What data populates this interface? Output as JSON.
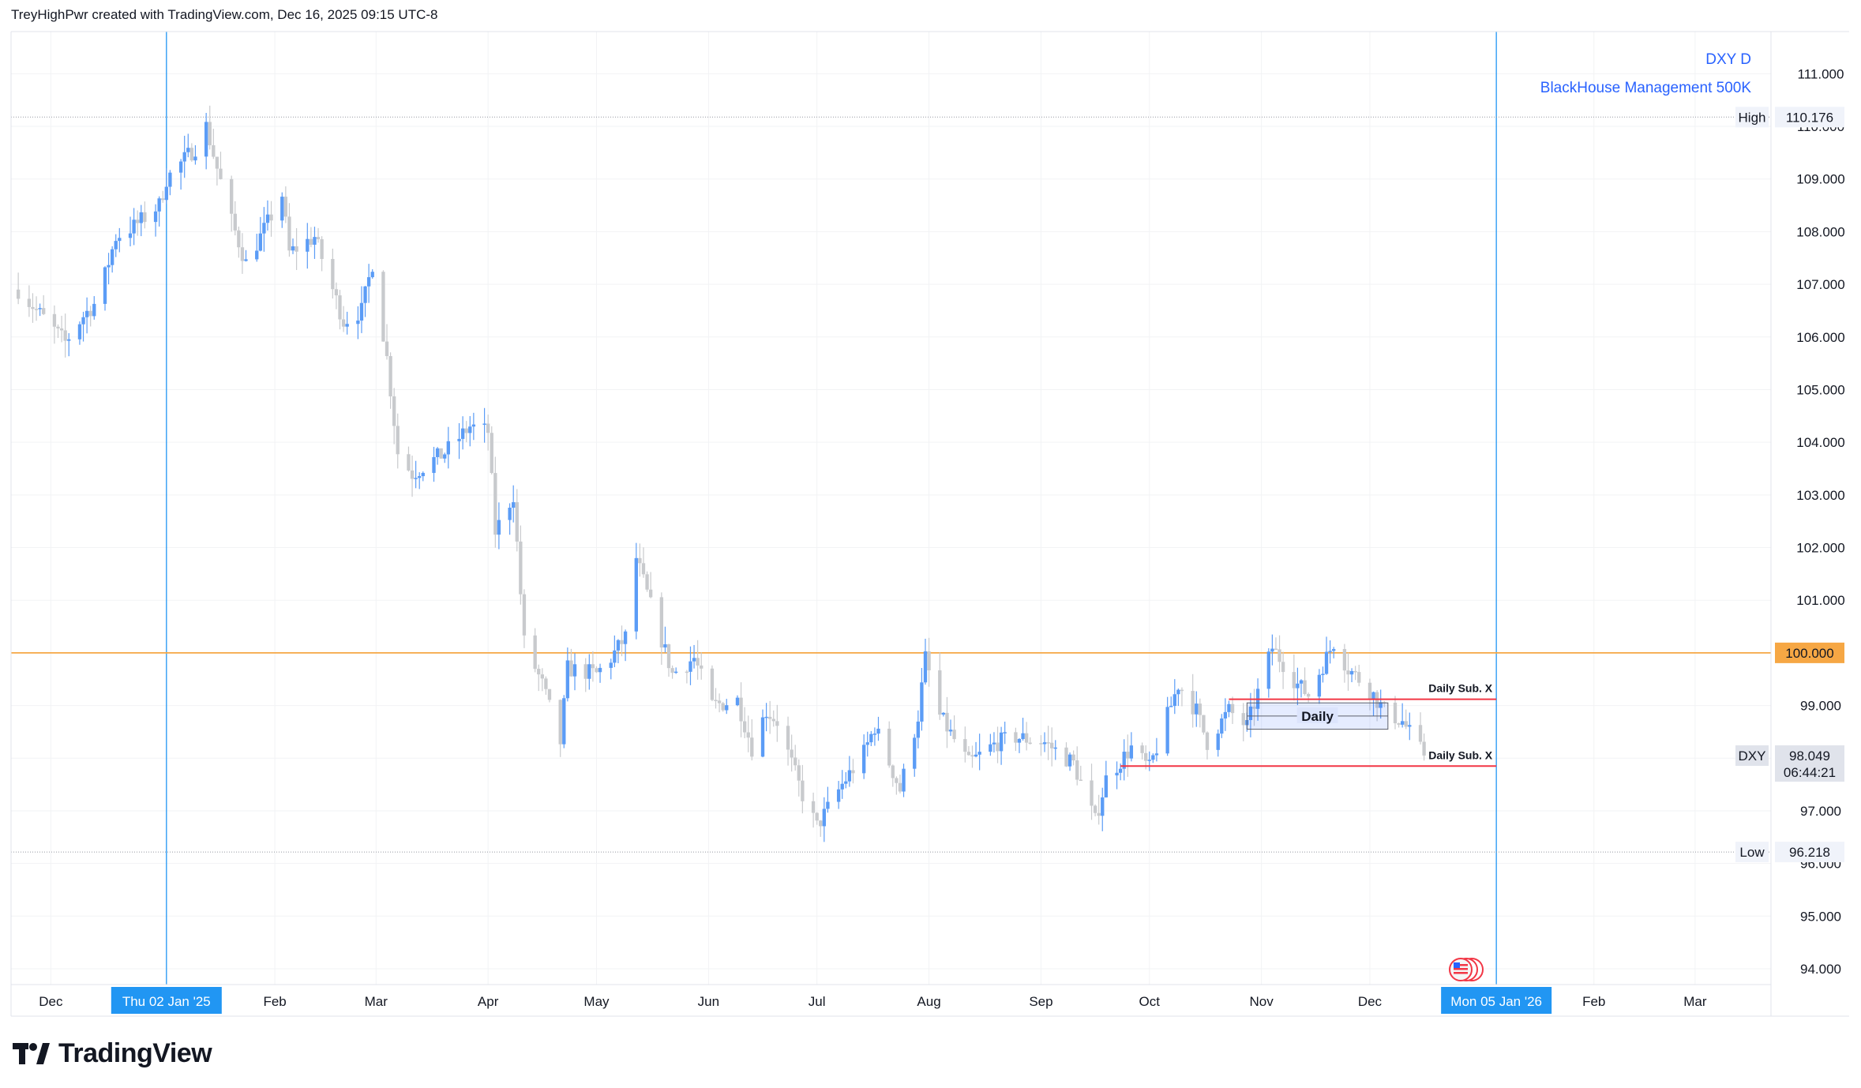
{
  "header": {
    "attribution": "TreyHighPwr created with TradingView.com, Dec 16, 2025 09:15 UTC-8"
  },
  "legend": {
    "symbol_line": "DXY D",
    "indicator_line": "BlackHouse Management 500K"
  },
  "footer": {
    "brand": "TradingView"
  },
  "colors": {
    "up": "#5b9cf6",
    "down": "#c8cacd",
    "accent_blue": "#2962ff",
    "cursor_blue": "#2196f3",
    "level_orange": "#f6a744",
    "zone_red": "#f23645",
    "grid": "#f2f3f5"
  },
  "chart_data": {
    "type": "candlestick",
    "symbol": "DXY",
    "interval": "D",
    "y_ticks": [
      111.0,
      110.0,
      109.0,
      108.0,
      107.0,
      106.0,
      105.0,
      104.0,
      103.0,
      102.0,
      101.0,
      100.0,
      99.0,
      98.0,
      97.0,
      96.0,
      95.0,
      94.0
    ],
    "ylim": [
      93.7,
      111.8
    ],
    "x_labels": [
      {
        "label": "Dec",
        "date": "2024-12-01"
      },
      {
        "label": "Thu 02 Jan '25",
        "date": "2025-01-02",
        "highlight": true
      },
      {
        "label": "Feb",
        "date": "2025-02-01"
      },
      {
        "label": "Mar",
        "date": "2025-03-01"
      },
      {
        "label": "Apr",
        "date": "2025-04-01"
      },
      {
        "label": "May",
        "date": "2025-05-01"
      },
      {
        "label": "Jun",
        "date": "2025-06-01"
      },
      {
        "label": "Jul",
        "date": "2025-07-01"
      },
      {
        "label": "Aug",
        "date": "2025-08-01"
      },
      {
        "label": "Sep",
        "date": "2025-09-01"
      },
      {
        "label": "Oct",
        "date": "2025-10-01"
      },
      {
        "label": "Nov",
        "date": "2025-11-01"
      },
      {
        "label": "Dec",
        "date": "2025-12-01"
      },
      {
        "label": "Mon 05 Jan '26",
        "date": "2026-01-05",
        "highlight": true
      },
      {
        "label": "Feb",
        "date": "2026-02-01"
      },
      {
        "label": "Mar",
        "date": "2026-03-01"
      }
    ],
    "xlim": [
      "2024-11-20",
      "2026-03-22"
    ],
    "high": {
      "label": "High",
      "value": "110.176"
    },
    "low": {
      "label": "Low",
      "value": "96.218"
    },
    "last": {
      "label": "DXY",
      "value": "98.049",
      "countdown": "06:44:21"
    },
    "level_line": {
      "value": "100.000"
    },
    "vertical_markers": [
      "2025-01-02",
      "2026-01-05"
    ],
    "annotations": {
      "daily_box": {
        "label": "Daily",
        "from": "2025-10-28",
        "to": "2025-12-06",
        "y_top": 99.05,
        "y_bottom": 98.55
      },
      "upper_line": {
        "label": "Daily Sub. X",
        "from": "2025-10-23",
        "to": "2026-01-05",
        "y": 99.12
      },
      "lower_line": {
        "label": "Daily Sub. X",
        "from": "2025-09-23",
        "to": "2026-01-05",
        "y": 97.85
      }
    },
    "price_path": [
      [
        "2024-11-22",
        106.9
      ],
      [
        "2024-12-05",
        105.9
      ],
      [
        "2024-12-10",
        106.4
      ],
      [
        "2024-12-14",
        106.7
      ],
      [
        "2024-12-19",
        107.9
      ],
      [
        "2024-12-24",
        108.1
      ],
      [
        "2024-12-31",
        108.5
      ],
      [
        "2025-01-02",
        109.0
      ],
      [
        "2025-01-10",
        109.6
      ],
      [
        "2025-01-13",
        110.0
      ],
      [
        "2025-01-16",
        109.2
      ],
      [
        "2025-01-20",
        108.2
      ],
      [
        "2025-01-24",
        107.4
      ],
      [
        "2025-01-28",
        107.9
      ],
      [
        "2025-02-03",
        108.7
      ],
      [
        "2025-02-05",
        107.6
      ],
      [
        "2025-02-12",
        107.9
      ],
      [
        "2025-02-20",
        106.3
      ],
      [
        "2025-02-25",
        106.5
      ],
      [
        "2025-02-28",
        107.4
      ],
      [
        "2025-03-04",
        105.6
      ],
      [
        "2025-03-07",
        103.8
      ],
      [
        "2025-03-11",
        103.4
      ],
      [
        "2025-03-20",
        103.8
      ],
      [
        "2025-03-27",
        104.3
      ],
      [
        "2025-04-01",
        104.2
      ],
      [
        "2025-04-03",
        102.3
      ],
      [
        "2025-04-08",
        103.0
      ],
      [
        "2025-04-11",
        100.2
      ],
      [
        "2025-04-16",
        99.4
      ],
      [
        "2025-04-21",
        98.3
      ],
      [
        "2025-04-23",
        99.7
      ],
      [
        "2025-05-01",
        99.6
      ],
      [
        "2025-05-05",
        99.9
      ],
      [
        "2025-05-09",
        100.3
      ],
      [
        "2025-05-12",
        101.8
      ],
      [
        "2025-05-16",
        100.9
      ],
      [
        "2025-05-22",
        99.6
      ],
      [
        "2025-05-28",
        99.9
      ],
      [
        "2025-06-02",
        99.0
      ],
      [
        "2025-06-09",
        99.1
      ],
      [
        "2025-06-13",
        98.2
      ],
      [
        "2025-06-17",
        98.9
      ],
      [
        "2025-06-20",
        98.7
      ],
      [
        "2025-06-27",
        97.3
      ],
      [
        "2025-07-01",
        96.7
      ],
      [
        "2025-07-08",
        97.5
      ],
      [
        "2025-07-14",
        98.1
      ],
      [
        "2025-07-17",
        98.6
      ],
      [
        "2025-07-24",
        97.4
      ],
      [
        "2025-07-29",
        98.8
      ],
      [
        "2025-07-31",
        99.9
      ],
      [
        "2025-08-04",
        98.8
      ],
      [
        "2025-08-12",
        97.9
      ],
      [
        "2025-08-20",
        98.3
      ],
      [
        "2025-08-25",
        98.4
      ],
      [
        "2025-09-02",
        98.3
      ],
      [
        "2025-09-10",
        97.9
      ],
      [
        "2025-09-16",
        96.8
      ],
      [
        "2025-09-19",
        97.6
      ],
      [
        "2025-09-26",
        98.2
      ],
      [
        "2025-10-01",
        97.8
      ],
      [
        "2025-10-06",
        98.8
      ],
      [
        "2025-10-09",
        99.4
      ],
      [
        "2025-10-14",
        98.9
      ],
      [
        "2025-10-17",
        98.3
      ],
      [
        "2025-10-23",
        98.9
      ],
      [
        "2025-10-28",
        98.6
      ],
      [
        "2025-11-04",
        100.1
      ],
      [
        "2025-11-11",
        99.4
      ],
      [
        "2025-11-14",
        99.2
      ],
      [
        "2025-11-21",
        100.2
      ],
      [
        "2025-11-25",
        99.7
      ],
      [
        "2025-12-01",
        99.3
      ],
      [
        "2025-12-05",
        98.9
      ],
      [
        "2025-12-10",
        98.7
      ],
      [
        "2025-12-16",
        98.05
      ]
    ]
  }
}
